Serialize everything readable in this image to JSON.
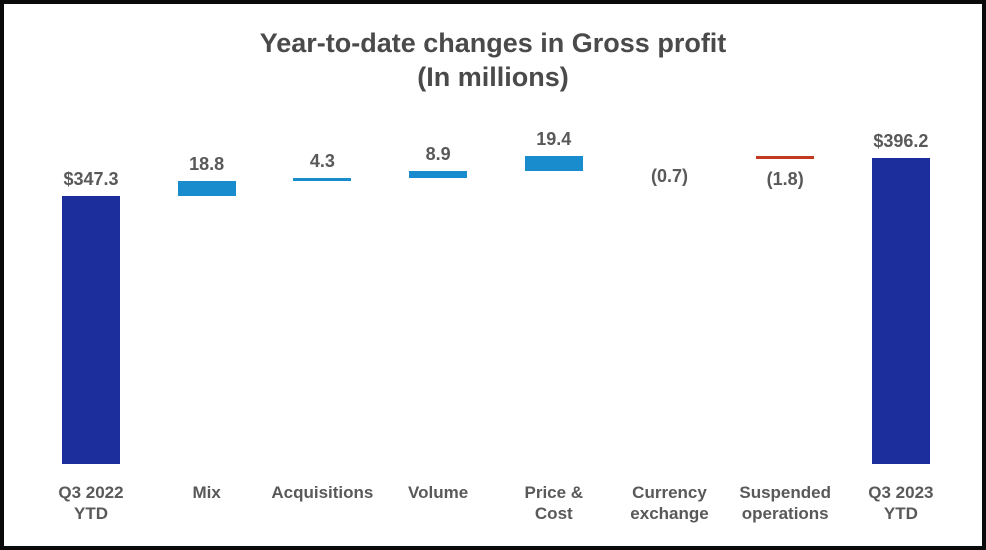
{
  "title": {
    "line1": "Year-to-date changes in Gross profit",
    "line2": "(In millions)"
  },
  "colors": {
    "total_bar": "#1b2e9b",
    "increase_bar": "#198ccd",
    "decrease_bar": "#c23a1e",
    "label_text": "#595959",
    "title_text": "#4a4a4a",
    "border": "#0a0a0a",
    "background": "#ffffff"
  },
  "chart_data": {
    "type": "bar",
    "subtype": "waterfall",
    "title": "Year-to-date changes in Gross profit",
    "subtitle": "(In millions)",
    "xlabel": "",
    "ylabel": "",
    "ylim": [
      0,
      440
    ],
    "grid": false,
    "legend": "none",
    "axis_lines": false,
    "categories": [
      "Q3 2022 YTD",
      "Mix",
      "Acquisitions",
      "Volume",
      "Price & Cost",
      "Currency exchange",
      "Suspended operations",
      "Q3 2023 YTD"
    ],
    "columns": [
      {
        "label": "Q3 2022\nYTD",
        "value": 347.3,
        "display": "$347.3",
        "kind": "total"
      },
      {
        "label": "Mix",
        "value": 18.8,
        "display": "18.8",
        "kind": "increase"
      },
      {
        "label": "Acquisitions",
        "value": 4.3,
        "display": "4.3",
        "kind": "increase"
      },
      {
        "label": "Volume",
        "value": 8.9,
        "display": "8.9",
        "kind": "increase"
      },
      {
        "label": "Price &\nCost",
        "value": 19.4,
        "display": "19.4",
        "kind": "increase"
      },
      {
        "label": "Currency\nexchange",
        "value": -0.7,
        "display": "(0.7)",
        "kind": "decrease"
      },
      {
        "label": "Suspended\noperations",
        "value": -1.8,
        "display": "(1.8)",
        "kind": "decrease"
      },
      {
        "label": "Q3 2023\nYTD",
        "value": 396.2,
        "display": "$396.2",
        "kind": "total"
      }
    ],
    "running_totals": [
      347.3,
      366.1,
      370.4,
      379.3,
      398.7,
      398.0,
      396.2
    ]
  }
}
